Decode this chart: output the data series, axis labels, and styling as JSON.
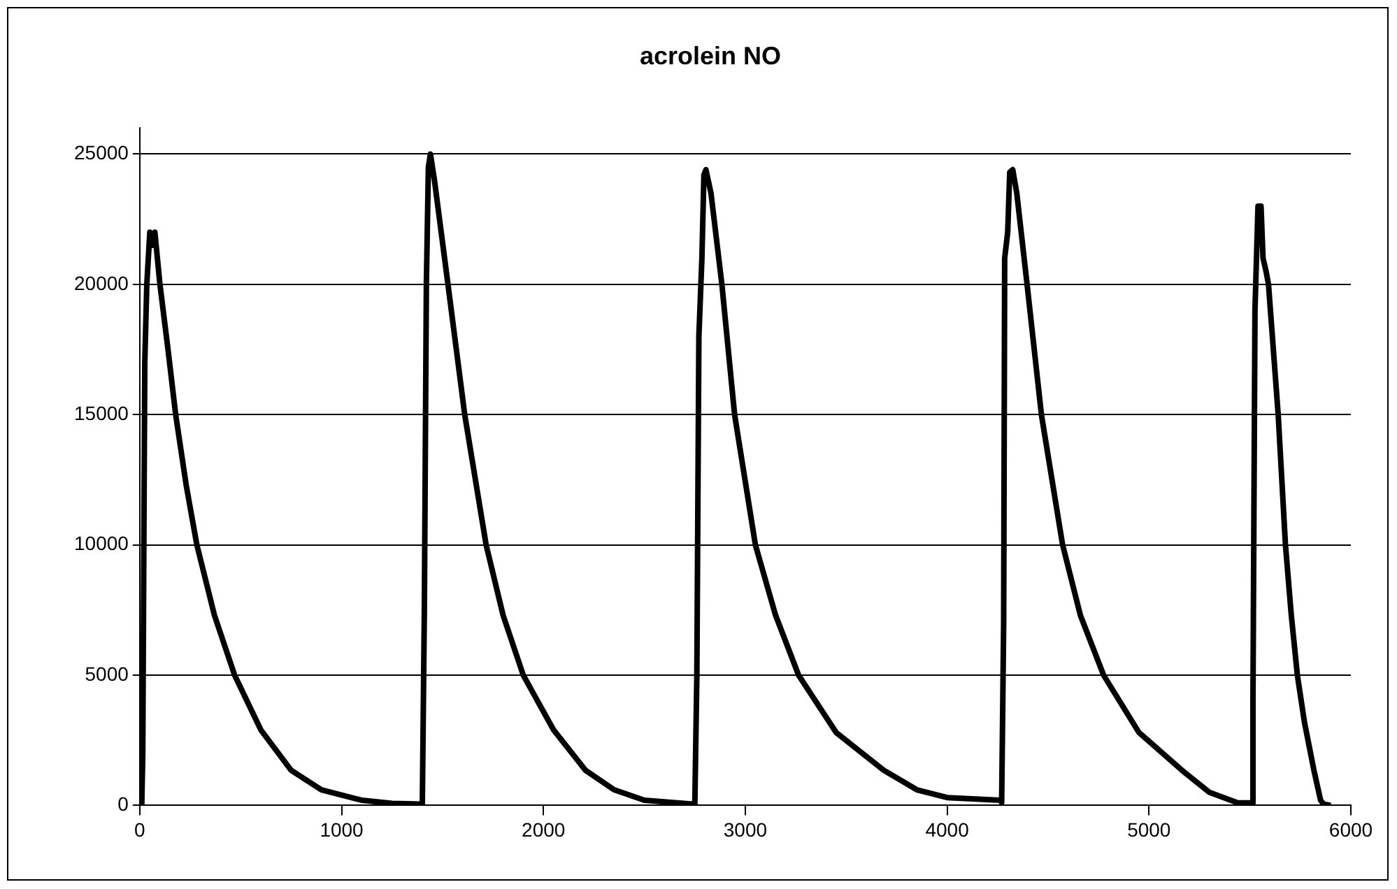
{
  "chart_data": {
    "type": "line",
    "title": "acrolein NO",
    "x": [
      0,
      10,
      15,
      25,
      35,
      50,
      65,
      75,
      100,
      140,
      178,
      230,
      283,
      370,
      470,
      600,
      750,
      900,
      1100,
      1250,
      1390,
      1400,
      1410,
      1420,
      1430,
      1440,
      1460,
      1527,
      1610,
      1716,
      1800,
      1900,
      2050,
      2208,
      2350,
      2500,
      2740,
      2750,
      2760,
      2770,
      2785,
      2795,
      2805,
      2830,
      2884,
      2947,
      3050,
      3150,
      3264,
      3450,
      3686,
      3850,
      4000,
      4265,
      4270,
      4280,
      4285,
      4300,
      4310,
      4325,
      4345,
      4396,
      4467,
      4572,
      4660,
      4775,
      4950,
      5163,
      5300,
      5440,
      5510,
      5515,
      5525,
      5540,
      5555,
      5565,
      5580,
      5592,
      5640,
      5676,
      5705,
      5735,
      5770,
      5817,
      5850,
      5865,
      5900
    ],
    "series": [
      {
        "color": "#000000",
        "values": [
          0,
          0,
          2000,
          17000,
          20000,
          22000,
          21500,
          22000,
          20000,
          17500,
          15000,
          12300,
          10000,
          7300,
          5000,
          2900,
          1350,
          600,
          200,
          80,
          50,
          50,
          7500,
          20000,
          24500,
          25000,
          24000,
          20000,
          15000,
          10000,
          7300,
          5000,
          2900,
          1350,
          600,
          200,
          50,
          50,
          5000,
          18000,
          21000,
          24200,
          24400,
          23500,
          20000,
          15000,
          10000,
          7300,
          5000,
          2800,
          1350,
          600,
          300,
          200,
          100,
          7000,
          21000,
          22000,
          24300,
          24400,
          23500,
          20000,
          15000,
          10000,
          7300,
          5000,
          2800,
          1350,
          500,
          100,
          100,
          4000,
          19000,
          23000,
          23000,
          21000,
          20500,
          20000,
          15000,
          10000,
          7300,
          5000,
          3200,
          1350,
          200,
          50,
          0
        ]
      }
    ],
    "xlim": [
      0,
      6000
    ],
    "xticks": [
      0,
      1000,
      2000,
      3000,
      4000,
      5000,
      6000
    ],
    "ylim": [
      0,
      26000
    ],
    "yticks": [
      0,
      5000,
      10000,
      15000,
      20000,
      25000
    ],
    "grid": "y",
    "legend": false
  }
}
